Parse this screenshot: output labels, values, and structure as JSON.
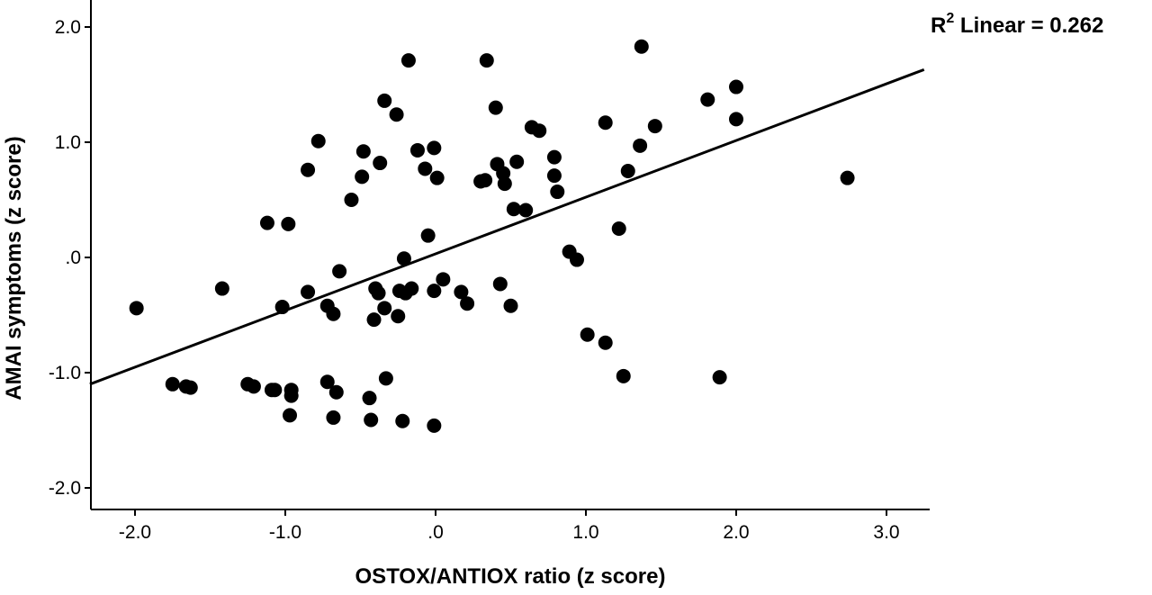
{
  "chart_data": {
    "type": "scatter",
    "xlabel": "OSTOX/ANTIOX ratio (z score)",
    "ylabel": "AMAI symptoms (z score)",
    "xlim": [
      -2.3,
      3.25
    ],
    "ylim": [
      -2.2,
      2.2
    ],
    "x_ticks": [
      -2.0,
      -1.0,
      0.0,
      1.0,
      2.0,
      3.0
    ],
    "x_tick_labels": [
      "-2.0",
      "-1.0",
      ".0",
      "1.0",
      "2.0",
      "3.0"
    ],
    "y_ticks": [
      -2.0,
      -1.0,
      0.0,
      1.0,
      2.0
    ],
    "y_tick_labels": [
      "-2.0",
      "-1.0",
      ".0",
      "1.0",
      "2.0"
    ],
    "grid": false,
    "annotation": {
      "prefix": "R",
      "sup": "2",
      "suffix": " Linear = 0.262"
    },
    "fit_line": {
      "x_start": -2.3,
      "y_start": -1.1,
      "x_end": 3.25,
      "y_end": 1.63
    },
    "points": [
      {
        "x": -1.99,
        "y": -0.44
      },
      {
        "x": -1.75,
        "y": -1.1
      },
      {
        "x": -1.66,
        "y": -1.12
      },
      {
        "x": -1.63,
        "y": -1.13
      },
      {
        "x": -1.42,
        "y": -0.27
      },
      {
        "x": -1.25,
        "y": -1.1
      },
      {
        "x": -1.21,
        "y": -1.12
      },
      {
        "x": -1.12,
        "y": 0.3
      },
      {
        "x": -1.09,
        "y": -1.15
      },
      {
        "x": -1.07,
        "y": -1.15
      },
      {
        "x": -1.02,
        "y": -0.43
      },
      {
        "x": -0.98,
        "y": 0.29
      },
      {
        "x": -0.96,
        "y": -1.15
      },
      {
        "x": -0.96,
        "y": -1.2
      },
      {
        "x": -0.97,
        "y": -1.37
      },
      {
        "x": -0.85,
        "y": 0.76
      },
      {
        "x": -0.85,
        "y": -0.3
      },
      {
        "x": -0.78,
        "y": 1.01
      },
      {
        "x": -0.72,
        "y": -0.42
      },
      {
        "x": -0.72,
        "y": -1.08
      },
      {
        "x": -0.68,
        "y": -0.49
      },
      {
        "x": -0.68,
        "y": -1.39
      },
      {
        "x": -0.66,
        "y": -1.17
      },
      {
        "x": -0.64,
        "y": -0.12
      },
      {
        "x": -0.56,
        "y": 0.5
      },
      {
        "x": -0.49,
        "y": 0.7
      },
      {
        "x": -0.48,
        "y": 0.92
      },
      {
        "x": -0.44,
        "y": -1.22
      },
      {
        "x": -0.43,
        "y": -1.41
      },
      {
        "x": -0.41,
        "y": -0.54
      },
      {
        "x": -0.4,
        "y": -0.27
      },
      {
        "x": -0.38,
        "y": -0.31
      },
      {
        "x": -0.37,
        "y": 0.82
      },
      {
        "x": -0.34,
        "y": -0.44
      },
      {
        "x": -0.34,
        "y": 1.36
      },
      {
        "x": -0.33,
        "y": -1.05
      },
      {
        "x": -0.26,
        "y": 1.24
      },
      {
        "x": -0.25,
        "y": -0.51
      },
      {
        "x": -0.24,
        "y": -0.29
      },
      {
        "x": -0.22,
        "y": -1.42
      },
      {
        "x": -0.21,
        "y": -0.01
      },
      {
        "x": -0.2,
        "y": -0.31
      },
      {
        "x": -0.18,
        "y": 1.71
      },
      {
        "x": -0.16,
        "y": -0.27
      },
      {
        "x": -0.12,
        "y": 0.93
      },
      {
        "x": -0.07,
        "y": 0.77
      },
      {
        "x": -0.05,
        "y": 0.19
      },
      {
        "x": -0.01,
        "y": 0.95
      },
      {
        "x": -0.01,
        "y": -0.29
      },
      {
        "x": -0.01,
        "y": -1.46
      },
      {
        "x": 0.01,
        "y": 0.69
      },
      {
        "x": 0.05,
        "y": -0.19
      },
      {
        "x": 0.17,
        "y": -0.3
      },
      {
        "x": 0.21,
        "y": -0.4
      },
      {
        "x": 0.3,
        "y": 0.66
      },
      {
        "x": 0.33,
        "y": 0.67
      },
      {
        "x": 0.34,
        "y": 1.71
      },
      {
        "x": 0.4,
        "y": 1.3
      },
      {
        "x": 0.41,
        "y": 0.81
      },
      {
        "x": 0.43,
        "y": -0.23
      },
      {
        "x": 0.45,
        "y": 0.73
      },
      {
        "x": 0.46,
        "y": 0.64
      },
      {
        "x": 0.5,
        "y": -0.42
      },
      {
        "x": 0.52,
        "y": 0.42
      },
      {
        "x": 0.54,
        "y": 0.83
      },
      {
        "x": 0.6,
        "y": 0.41
      },
      {
        "x": 0.64,
        "y": 1.13
      },
      {
        "x": 0.69,
        "y": 1.1
      },
      {
        "x": 0.79,
        "y": 0.71
      },
      {
        "x": 0.79,
        "y": 0.87
      },
      {
        "x": 0.81,
        "y": 0.57
      },
      {
        "x": 0.89,
        "y": 0.05
      },
      {
        "x": 0.94,
        "y": -0.02
      },
      {
        "x": 1.01,
        "y": -0.67
      },
      {
        "x": 1.13,
        "y": -0.74
      },
      {
        "x": 1.13,
        "y": 1.17
      },
      {
        "x": 1.22,
        "y": 0.25
      },
      {
        "x": 1.25,
        "y": -1.03
      },
      {
        "x": 1.28,
        "y": 0.75
      },
      {
        "x": 1.36,
        "y": 0.97
      },
      {
        "x": 1.37,
        "y": 1.83
      },
      {
        "x": 1.46,
        "y": 1.14
      },
      {
        "x": 1.81,
        "y": 1.37
      },
      {
        "x": 1.89,
        "y": -1.04
      },
      {
        "x": 2.0,
        "y": 1.48
      },
      {
        "x": 2.0,
        "y": 1.2
      },
      {
        "x": 2.74,
        "y": 0.69
      }
    ]
  }
}
